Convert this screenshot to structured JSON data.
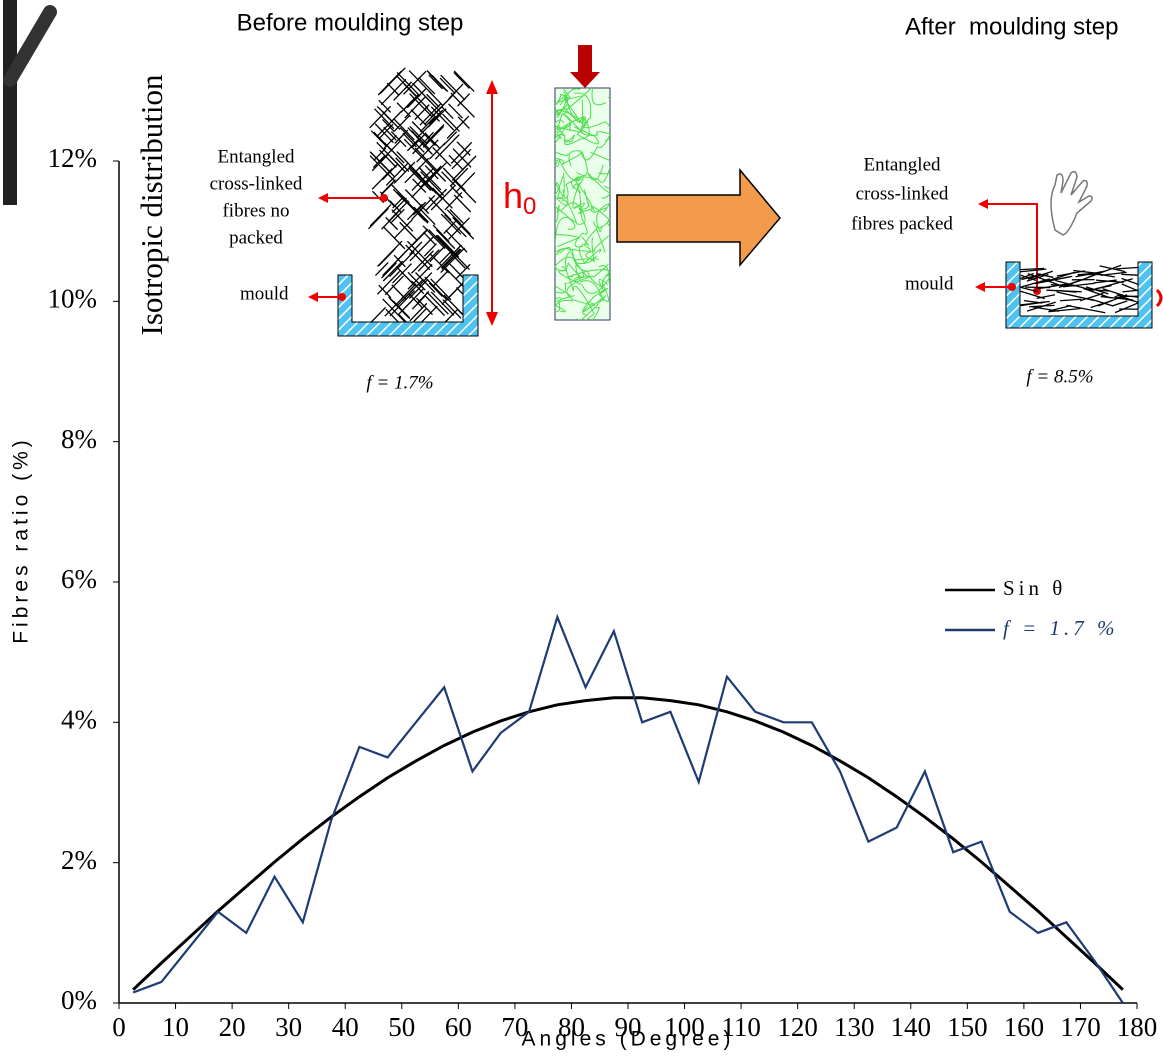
{
  "chart_data": {
    "type": "line",
    "x_label": "Angles (Degree)",
    "y_label": "Fibres ratio (%)",
    "x": [
      2.5,
      7.5,
      12.5,
      17.5,
      22.5,
      27.5,
      32.5,
      37.5,
      42.5,
      47.5,
      52.5,
      57.5,
      62.5,
      67.5,
      72.5,
      77.5,
      82.5,
      87.5,
      92.5,
      97.5,
      102.5,
      107.5,
      112.5,
      117.5,
      122.5,
      127.5,
      132.5,
      137.5,
      142.5,
      147.5,
      152.5,
      157.5,
      162.5,
      167.5,
      172.5,
      177.5
    ],
    "series": [
      {
        "name": "Sin θ",
        "color": "#000000",
        "values": [
          0.19,
          0.57,
          0.94,
          1.31,
          1.66,
          2.01,
          2.34,
          2.65,
          2.94,
          3.21,
          3.45,
          3.67,
          3.86,
          4.02,
          4.15,
          4.25,
          4.31,
          4.35,
          4.35,
          4.31,
          4.25,
          4.15,
          4.02,
          3.86,
          3.67,
          3.45,
          3.21,
          2.94,
          2.65,
          2.34,
          2.01,
          1.66,
          1.31,
          0.94,
          0.57,
          0.19
        ]
      },
      {
        "name": "f = 1.7 %",
        "color": "#1f3b73",
        "values": [
          0.15,
          0.3,
          0.8,
          1.3,
          1.0,
          1.8,
          1.15,
          2.6,
          3.65,
          3.5,
          4.0,
          4.5,
          3.3,
          3.85,
          4.15,
          5.5,
          4.5,
          5.3,
          4.0,
          4.15,
          3.15,
          4.65,
          4.15,
          4.0,
          4.0,
          3.3,
          2.3,
          2.5,
          3.3,
          2.15,
          2.3,
          1.3,
          1.0,
          1.15,
          0.6,
          0.0
        ]
      }
    ],
    "xlim": [
      0,
      180
    ],
    "xticks": [
      0,
      10,
      20,
      30,
      40,
      50,
      60,
      70,
      80,
      90,
      100,
      110,
      120,
      130,
      140,
      150,
      160,
      170,
      180
    ],
    "ylim": [
      0,
      12
    ],
    "yticks": [
      {
        "value": 0,
        "label": "0%"
      },
      {
        "value": 2,
        "label": "2%"
      },
      {
        "value": 4,
        "label": "4%"
      },
      {
        "value": 6,
        "label": "6%"
      },
      {
        "value": 8,
        "label": "8%"
      },
      {
        "value": 10,
        "label": "10%"
      },
      {
        "value": 12,
        "label": "12%"
      }
    ],
    "legend": "upper right"
  },
  "inset": {
    "side_title": "Isotropic distribution",
    "before_title": "Before moulding step",
    "after_title": "After  moulding step",
    "before_fibres": [
      "Entangled",
      "cross-linked",
      "fibres no",
      "packed"
    ],
    "before_mould": "mould",
    "height_symbol": "h",
    "height_subscript": "0",
    "before_fraction": "f = 1.7%",
    "after_fibres": [
      "Entangled",
      "cross-linked",
      "fibres packed"
    ],
    "after_mould": "mould",
    "after_fraction": "f = 8.5%"
  }
}
